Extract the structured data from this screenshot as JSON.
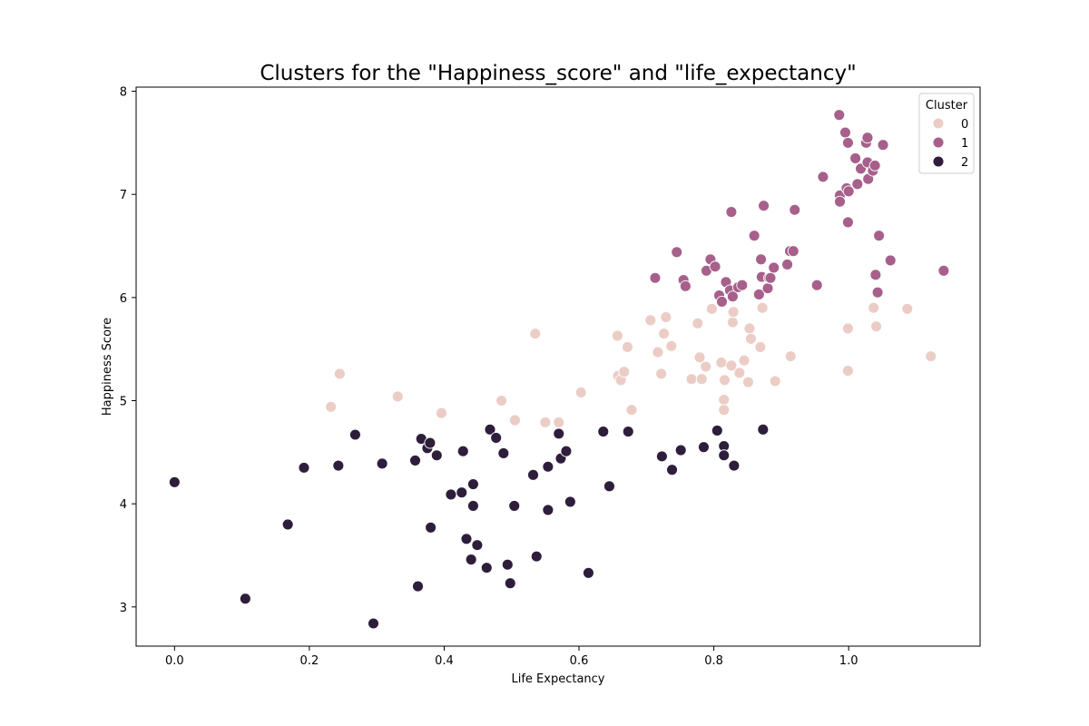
{
  "chart_data": {
    "type": "scatter",
    "title": "Clusters for the \"Happiness_score\" and \"life_expectancy\"",
    "xlabel": "Life Expectancy",
    "ylabel": "Happiness Score",
    "xlim": [
      -0.057,
      1.195
    ],
    "ylim": [
      2.62,
      8.04
    ],
    "xticks": [
      0.0,
      0.2,
      0.4,
      0.6,
      0.8,
      1.0
    ],
    "xtick_labels": [
      "0.0",
      "0.2",
      "0.4",
      "0.6",
      "0.8",
      "1.0"
    ],
    "yticks": [
      3,
      4,
      5,
      6,
      7,
      8
    ],
    "ytick_labels": [
      "3",
      "4",
      "5",
      "6",
      "7",
      "8"
    ],
    "grid": false,
    "legend": {
      "title": "Cluster",
      "placement": "top-right"
    },
    "series": [
      {
        "name": "0",
        "color": "#ebcdc6",
        "points": [
          [
            0.232,
            4.94
          ],
          [
            0.245,
            5.26
          ],
          [
            0.331,
            5.04
          ],
          [
            0.396,
            4.88
          ],
          [
            0.485,
            5.0
          ],
          [
            0.505,
            4.81
          ],
          [
            0.535,
            5.65
          ],
          [
            0.55,
            4.79
          ],
          [
            0.57,
            4.79
          ],
          [
            0.603,
            5.08
          ],
          [
            0.657,
            5.63
          ],
          [
            0.658,
            5.24
          ],
          [
            0.662,
            5.2
          ],
          [
            0.667,
            5.28
          ],
          [
            0.672,
            5.52
          ],
          [
            0.678,
            4.91
          ],
          [
            0.706,
            5.78
          ],
          [
            0.717,
            5.47
          ],
          [
            0.722,
            5.26
          ],
          [
            0.726,
            5.65
          ],
          [
            0.729,
            5.81
          ],
          [
            0.737,
            5.53
          ],
          [
            0.767,
            5.21
          ],
          [
            0.776,
            5.75
          ],
          [
            0.779,
            5.42
          ],
          [
            0.782,
            5.21
          ],
          [
            0.788,
            5.33
          ],
          [
            0.797,
            5.89
          ],
          [
            0.811,
            5.37
          ],
          [
            0.815,
            5.01
          ],
          [
            0.815,
            4.91
          ],
          [
            0.816,
            5.2
          ],
          [
            0.826,
            5.34
          ],
          [
            0.828,
            5.76
          ],
          [
            0.829,
            5.86
          ],
          [
            0.838,
            5.27
          ],
          [
            0.845,
            5.39
          ],
          [
            0.851,
            5.18
          ],
          [
            0.853,
            5.7
          ],
          [
            0.855,
            5.6
          ],
          [
            0.869,
            5.52
          ],
          [
            0.872,
            5.9
          ],
          [
            0.891,
            5.19
          ],
          [
            0.914,
            5.43
          ],
          [
            0.999,
            5.7
          ],
          [
            0.999,
            5.29
          ],
          [
            1.037,
            5.9
          ],
          [
            1.041,
            5.72
          ],
          [
            1.087,
            5.89
          ],
          [
            1.122,
            5.43
          ]
        ]
      },
      {
        "name": "1",
        "color": "#a7608b",
        "points": [
          [
            0.713,
            6.19
          ],
          [
            0.745,
            6.44
          ],
          [
            0.755,
            6.17
          ],
          [
            0.758,
            6.11
          ],
          [
            0.789,
            6.26
          ],
          [
            0.795,
            6.37
          ],
          [
            0.802,
            6.3
          ],
          [
            0.808,
            6.02
          ],
          [
            0.812,
            5.96
          ],
          [
            0.818,
            6.15
          ],
          [
            0.824,
            6.07
          ],
          [
            0.826,
            6.83
          ],
          [
            0.828,
            6.01
          ],
          [
            0.836,
            6.1
          ],
          [
            0.842,
            6.12
          ],
          [
            0.86,
            6.6
          ],
          [
            0.867,
            6.03
          ],
          [
            0.87,
            6.37
          ],
          [
            0.871,
            6.2
          ],
          [
            0.874,
            6.89
          ],
          [
            0.88,
            6.09
          ],
          [
            0.882,
            6.19
          ],
          [
            0.884,
            6.19
          ],
          [
            0.889,
            6.29
          ],
          [
            0.909,
            6.32
          ],
          [
            0.913,
            6.45
          ],
          [
            0.918,
            6.45
          ],
          [
            0.92,
            6.85
          ],
          [
            0.953,
            6.12
          ],
          [
            0.962,
            7.17
          ],
          [
            0.986,
            7.77
          ],
          [
            0.987,
            6.99
          ],
          [
            0.987,
            6.93
          ],
          [
            0.995,
            7.6
          ],
          [
            0.997,
            7.06
          ],
          [
            0.999,
            7.5
          ],
          [
            0.999,
            6.73
          ],
          [
            1.0,
            7.03
          ],
          [
            1.01,
            7.35
          ],
          [
            1.013,
            7.1
          ],
          [
            1.018,
            7.25
          ],
          [
            1.026,
            7.5
          ],
          [
            1.028,
            7.55
          ],
          [
            1.028,
            7.31
          ],
          [
            1.029,
            7.15
          ],
          [
            1.036,
            7.23
          ],
          [
            1.039,
            7.28
          ],
          [
            1.04,
            6.22
          ],
          [
            1.043,
            6.05
          ],
          [
            1.045,
            6.6
          ],
          [
            1.051,
            7.48
          ],
          [
            1.062,
            6.36
          ],
          [
            1.141,
            6.26
          ]
        ]
      },
      {
        "name": "2",
        "color": "#2e1e3b",
        "points": [
          [
            0.0,
            4.21
          ],
          [
            0.105,
            3.08
          ],
          [
            0.168,
            3.8
          ],
          [
            0.192,
            4.35
          ],
          [
            0.243,
            4.37
          ],
          [
            0.268,
            4.67
          ],
          [
            0.295,
            2.84
          ],
          [
            0.308,
            4.39
          ],
          [
            0.357,
            4.42
          ],
          [
            0.361,
            3.2
          ],
          [
            0.366,
            4.63
          ],
          [
            0.375,
            4.54
          ],
          [
            0.379,
            4.59
          ],
          [
            0.38,
            3.77
          ],
          [
            0.389,
            4.47
          ],
          [
            0.41,
            4.09
          ],
          [
            0.426,
            4.11
          ],
          [
            0.428,
            4.51
          ],
          [
            0.433,
            3.66
          ],
          [
            0.44,
            3.46
          ],
          [
            0.443,
            4.19
          ],
          [
            0.443,
            3.98
          ],
          [
            0.449,
            3.6
          ],
          [
            0.463,
            3.38
          ],
          [
            0.468,
            4.72
          ],
          [
            0.477,
            4.64
          ],
          [
            0.488,
            4.49
          ],
          [
            0.494,
            3.41
          ],
          [
            0.498,
            3.23
          ],
          [
            0.504,
            3.98
          ],
          [
            0.532,
            4.28
          ],
          [
            0.537,
            3.49
          ],
          [
            0.554,
            4.36
          ],
          [
            0.554,
            3.94
          ],
          [
            0.57,
            4.68
          ],
          [
            0.573,
            4.44
          ],
          [
            0.581,
            4.51
          ],
          [
            0.587,
            4.02
          ],
          [
            0.614,
            3.33
          ],
          [
            0.636,
            4.7
          ],
          [
            0.645,
            4.17
          ],
          [
            0.673,
            4.7
          ],
          [
            0.723,
            4.46
          ],
          [
            0.738,
            4.33
          ],
          [
            0.751,
            4.52
          ],
          [
            0.785,
            4.55
          ],
          [
            0.805,
            4.71
          ],
          [
            0.815,
            4.56
          ],
          [
            0.815,
            4.47
          ],
          [
            0.83,
            4.37
          ],
          [
            0.873,
            4.72
          ]
        ]
      }
    ]
  }
}
